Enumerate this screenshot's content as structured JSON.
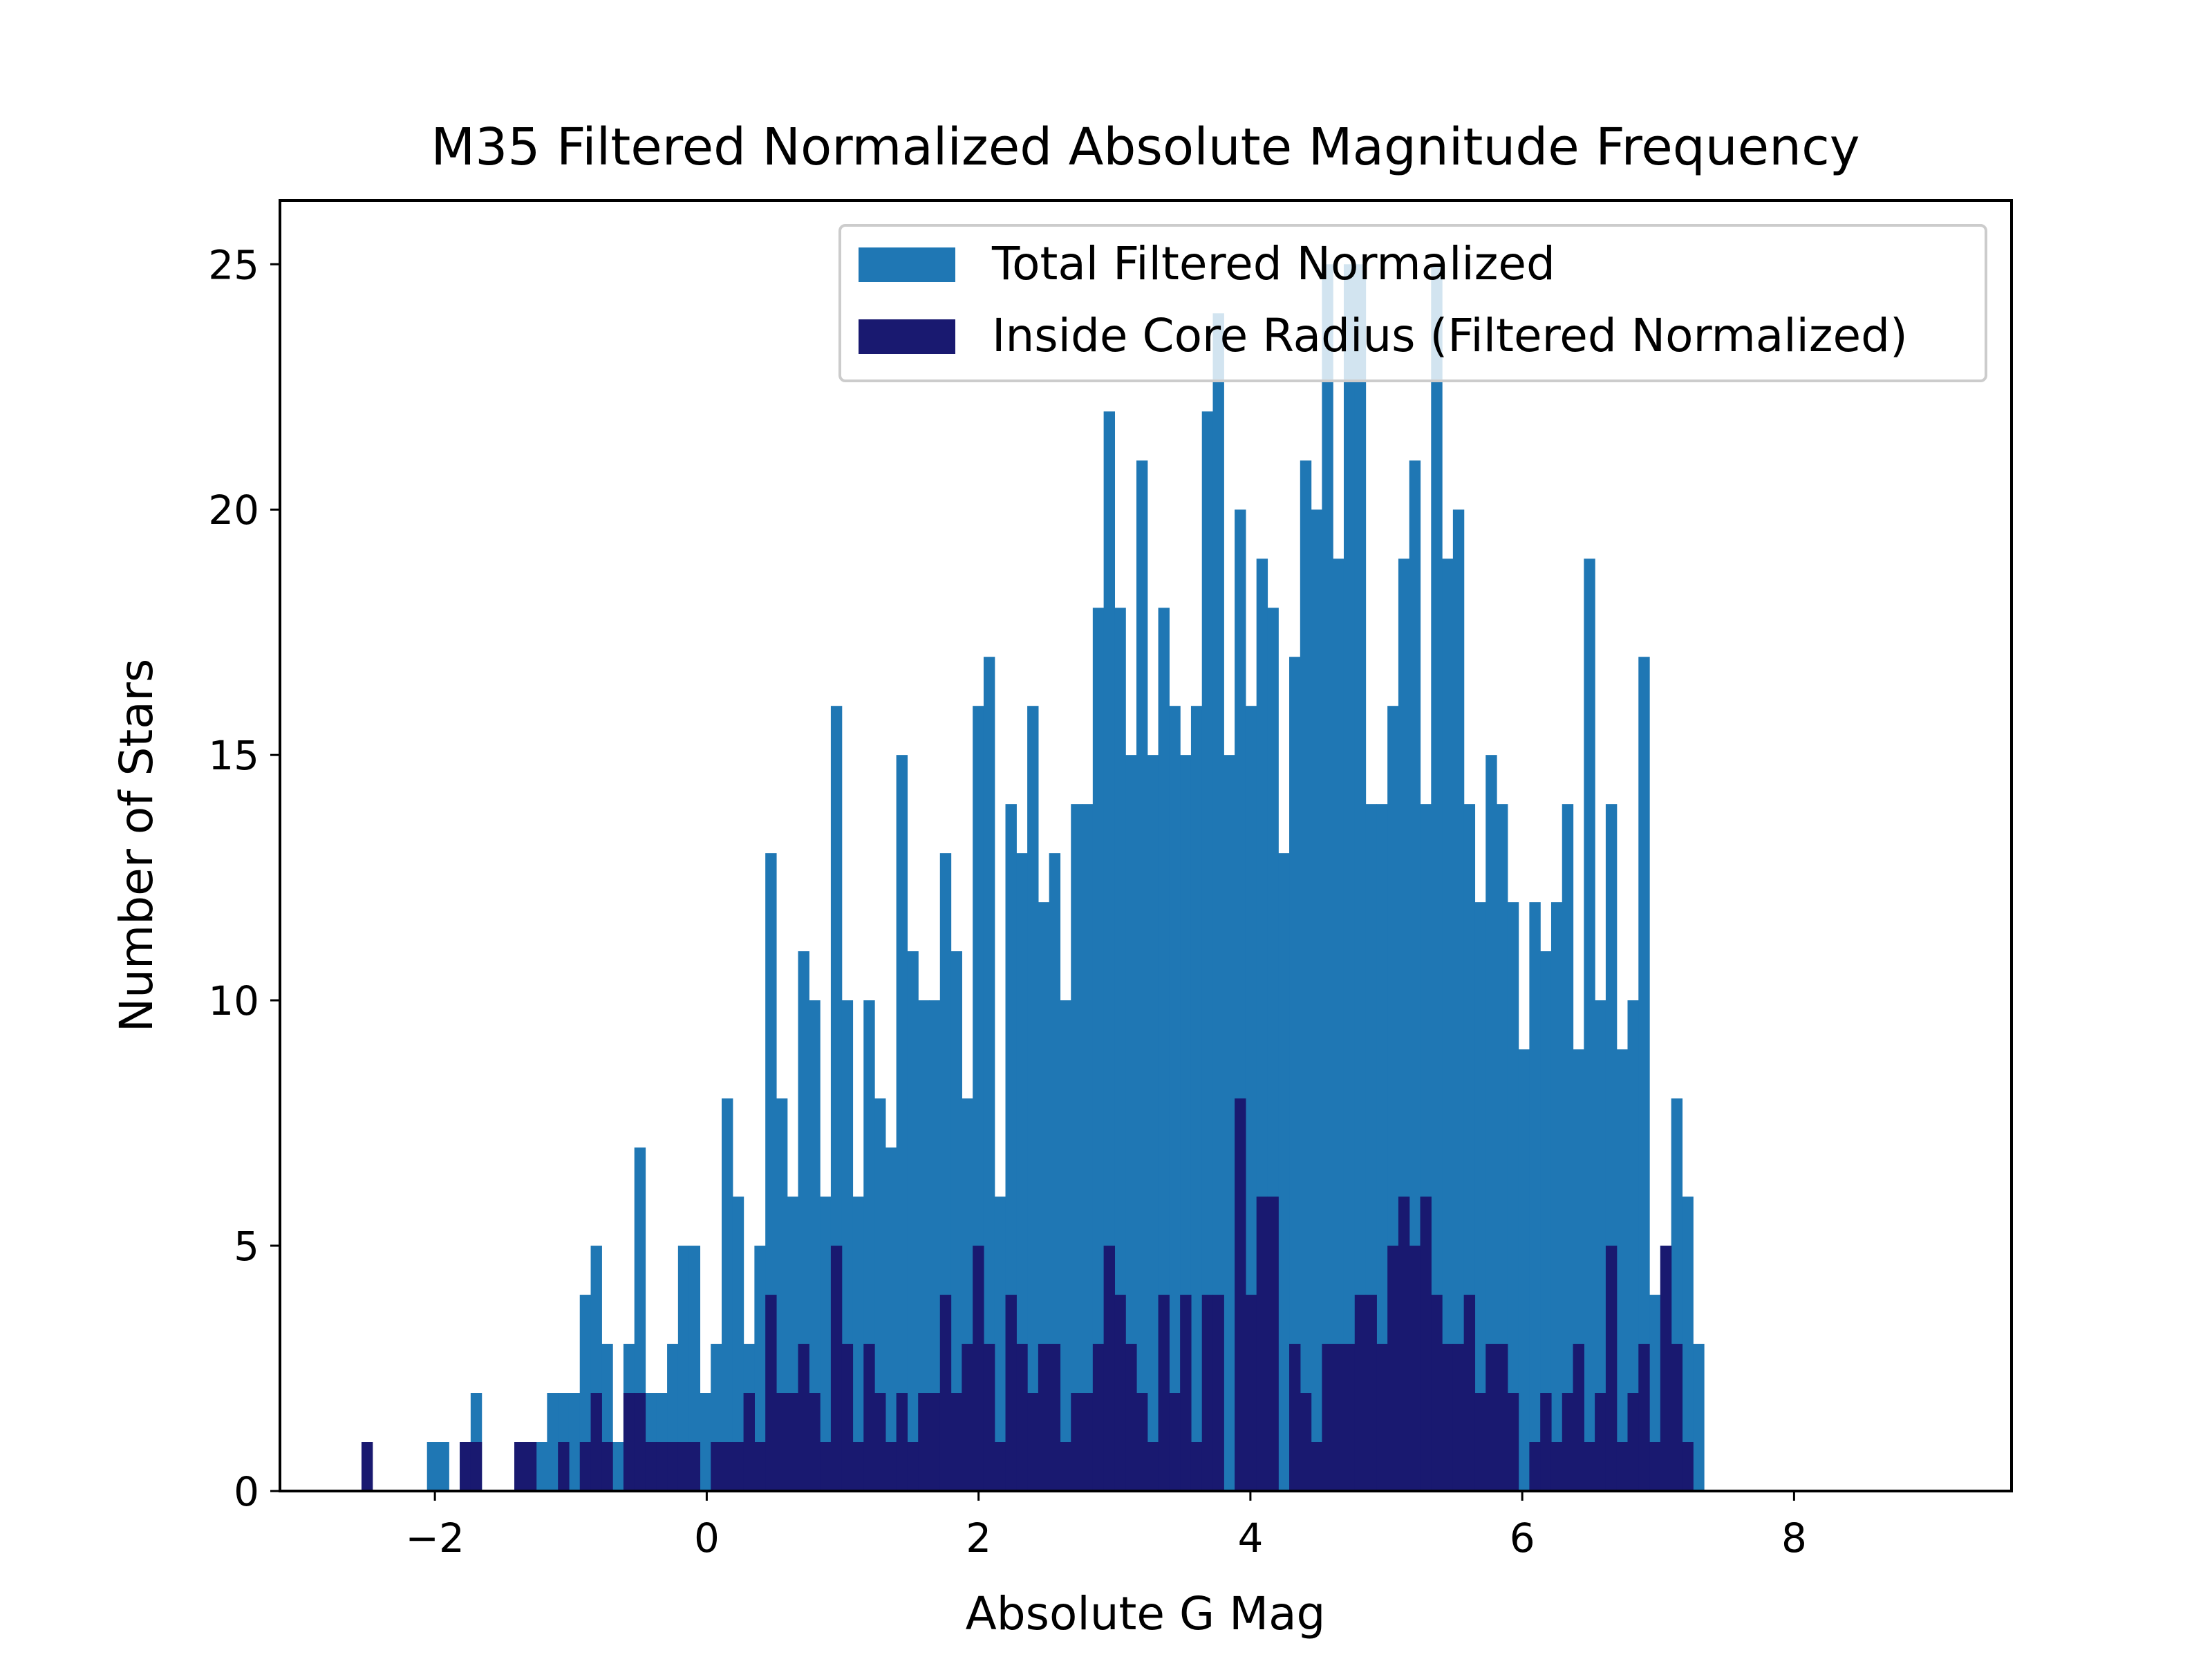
{
  "chart_data": {
    "type": "bar",
    "title": "M35 Filtered Normalized Absolute Magnitude Frequency",
    "xlabel": "Absolute G Mag",
    "ylabel": "Number of Stars",
    "xlim": [
      -3.14,
      9.6
    ],
    "ylim": [
      0,
      26.3
    ],
    "xticks": [
      -2,
      0,
      2,
      4,
      6,
      8
    ],
    "xtick_labels": [
      "−2",
      "0",
      "2",
      "4",
      "6",
      "8"
    ],
    "yticks": [
      0,
      5,
      10,
      15,
      20,
      25
    ],
    "ytick_labels": [
      "0",
      "5",
      "10",
      "15",
      "20",
      "25"
    ],
    "grid": false,
    "legend_position": "top-right",
    "bin_start": -2.54,
    "bin_width": 0.0803,
    "series": [
      {
        "name": "Total Filtered Normalized",
        "color": "#1f77b4",
        "values": [
          0,
          0,
          0,
          0,
          0,
          0,
          1,
          1,
          0,
          1,
          2,
          0,
          0,
          0,
          0,
          1,
          1,
          2,
          2,
          2,
          4,
          5,
          3,
          1,
          3,
          7,
          2,
          2,
          3,
          5,
          5,
          2,
          3,
          8,
          6,
          3,
          5,
          13,
          8,
          6,
          11,
          10,
          6,
          16,
          10,
          6,
          10,
          8,
          7,
          15,
          11,
          10,
          10,
          13,
          11,
          8,
          16,
          17,
          6,
          14,
          13,
          16,
          12,
          13,
          10,
          14,
          14,
          18,
          22,
          18,
          15,
          21,
          15,
          18,
          16,
          15,
          16,
          22,
          24,
          15,
          20,
          16,
          19,
          18,
          13,
          17,
          21,
          20,
          25,
          19,
          25,
          25,
          14,
          14,
          16,
          19,
          21,
          14,
          25,
          19,
          20,
          14,
          12,
          15,
          14,
          12,
          9,
          12,
          11,
          12,
          14,
          9,
          19,
          10,
          14,
          9,
          10,
          17,
          4,
          5,
          8,
          6,
          3
        ]
      },
      {
        "name": "Inside Core Radius (Filtered Normalized)",
        "color": "#191970",
        "values": [
          1,
          0,
          0,
          0,
          0,
          0,
          0,
          0,
          0,
          1,
          1,
          0,
          0,
          0,
          1,
          1,
          0,
          0,
          1,
          0,
          1,
          2,
          1,
          0,
          2,
          2,
          1,
          1,
          1,
          1,
          1,
          0,
          1,
          1,
          1,
          2,
          1,
          4,
          2,
          2,
          3,
          2,
          1,
          5,
          3,
          1,
          3,
          2,
          1,
          2,
          1,
          2,
          2,
          4,
          2,
          3,
          5,
          3,
          1,
          4,
          3,
          2,
          3,
          3,
          1,
          2,
          2,
          3,
          5,
          4,
          3,
          2,
          1,
          4,
          2,
          4,
          1,
          4,
          4,
          0,
          8,
          4,
          6,
          6,
          0,
          3,
          2,
          1,
          3,
          3,
          3,
          4,
          4,
          3,
          5,
          6,
          5,
          6,
          4,
          3,
          3,
          4,
          2,
          3,
          3,
          2,
          0,
          1,
          2,
          1,
          2,
          3,
          1,
          2,
          5,
          1,
          2,
          3,
          1,
          5,
          3,
          1,
          0,
          0,
          0,
          0,
          0
        ]
      }
    ]
  }
}
